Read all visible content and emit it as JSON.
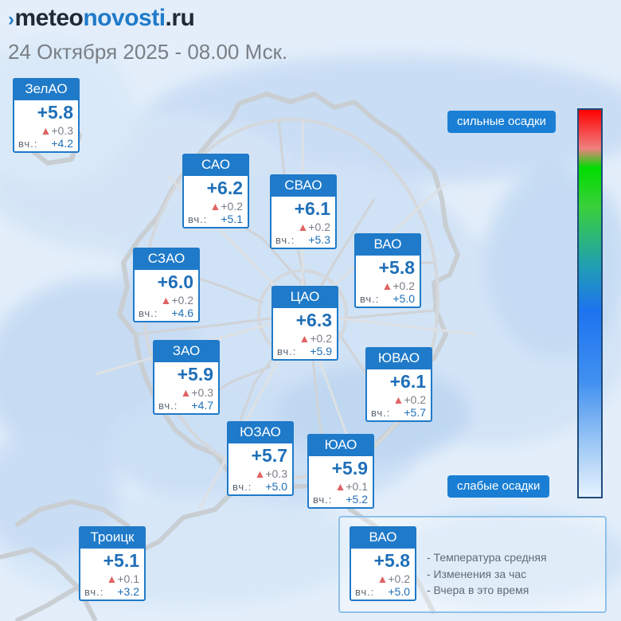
{
  "header": {
    "logo_mark": "›",
    "logo_part1": "meteo",
    "logo_part2": "novosti",
    "logo_part3": ".ru",
    "date": "24 Октября 2025 - 08.00 Мск."
  },
  "districts": [
    {
      "id": "zelao",
      "name": "ЗелАО",
      "temp": "+5.8",
      "change": "+0.3",
      "yday_label": "вч.:",
      "yday": "+4.2"
    },
    {
      "id": "sao",
      "name": "САО",
      "temp": "+6.2",
      "change": "+0.2",
      "yday_label": "вч.:",
      "yday": "+5.1"
    },
    {
      "id": "svao",
      "name": "СВАО",
      "temp": "+6.1",
      "change": "+0.2",
      "yday_label": "вч.:",
      "yday": "+5.3"
    },
    {
      "id": "vao",
      "name": "ВАО",
      "temp": "+5.8",
      "change": "+0.2",
      "yday_label": "вч.:",
      "yday": "+5.0"
    },
    {
      "id": "szao",
      "name": "СЗАО",
      "temp": "+6.0",
      "change": "+0.2",
      "yday_label": "вч.:",
      "yday": "+4.6"
    },
    {
      "id": "cao",
      "name": "ЦАО",
      "temp": "+6.3",
      "change": "+0.2",
      "yday_label": "вч.:",
      "yday": "+5.9"
    },
    {
      "id": "zao",
      "name": "ЗАО",
      "temp": "+5.9",
      "change": "+0.3",
      "yday_label": "вч.:",
      "yday": "+4.7"
    },
    {
      "id": "yuvao",
      "name": "ЮВАО",
      "temp": "+6.1",
      "change": "+0.2",
      "yday_label": "вч.:",
      "yday": "+5.7"
    },
    {
      "id": "yuzao",
      "name": "ЮЗАО",
      "temp": "+5.7",
      "change": "+0.3",
      "yday_label": "вч.:",
      "yday": "+5.0"
    },
    {
      "id": "yuao",
      "name": "ЮАО",
      "temp": "+5.9",
      "change": "+0.1",
      "yday_label": "вч.:",
      "yday": "+5.2"
    },
    {
      "id": "troitsk",
      "name": "Троицк",
      "temp": "+5.1",
      "change": "+0.1",
      "yday_label": "вч.:",
      "yday": "+3.2"
    }
  ],
  "scale": {
    "top_label": "сильные осадки",
    "bottom_label": "слабые осадки"
  },
  "legend": {
    "sample": {
      "name": "ВАО",
      "temp": "+5.8",
      "change": "+0.2",
      "yday_label": "вч.:",
      "yday": "+5.0"
    },
    "line1": "- Температура средняя",
    "line2": "- Изменения за час",
    "line3": "- Вчера в это время"
  },
  "colors": {
    "accent": "#1f7ac9",
    "rise_arrow": "#e06363",
    "map_background": "#e3eefa",
    "precip_light": "#cfe3f7"
  },
  "icons": {
    "rise": "up-triangle-icon",
    "logo": "chevron-right-icon"
  }
}
